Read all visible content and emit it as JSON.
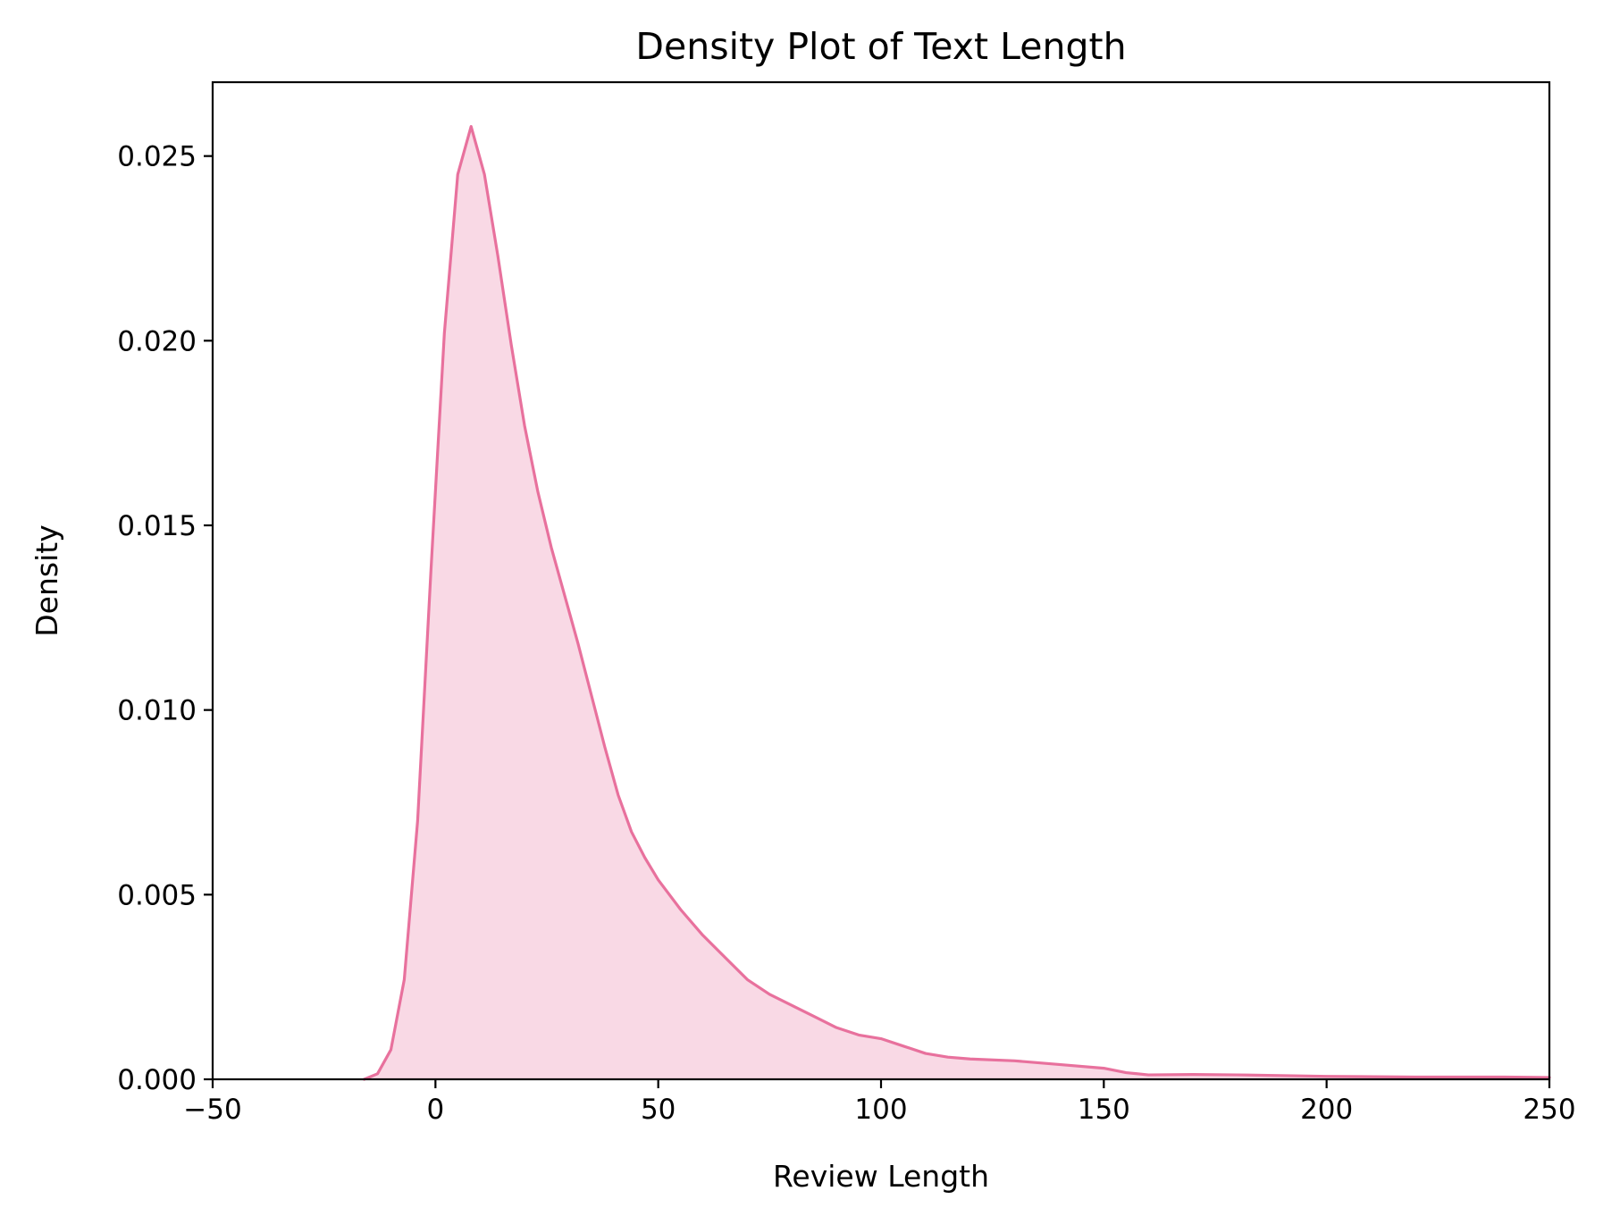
{
  "chart_data": {
    "type": "area",
    "title": "Density Plot of Text Length",
    "xlabel": "Review Length",
    "ylabel": "Density",
    "xlim": [
      -50,
      250
    ],
    "ylim": [
      0,
      0.027
    ],
    "xticks": [
      -50,
      0,
      50,
      100,
      150,
      200,
      250
    ],
    "xtick_labels": [
      "−50",
      "0",
      "50",
      "100",
      "150",
      "200",
      "250"
    ],
    "yticks": [
      0,
      0.005,
      0.01,
      0.015,
      0.02,
      0.025
    ],
    "ytick_labels": [
      "0.000",
      "0.005",
      "0.010",
      "0.015",
      "0.020",
      "0.025"
    ],
    "grid": false,
    "line_color": "#e8719d",
    "fill_color": "#f9d9e5",
    "series": [
      {
        "x": [
          -16,
          -13,
          -10,
          -7,
          -4,
          -1,
          2,
          5,
          8,
          11,
          14,
          17,
          20,
          23,
          26,
          29,
          32,
          35,
          38,
          41,
          44,
          47,
          50,
          55,
          60,
          65,
          70,
          75,
          80,
          85,
          90,
          95,
          100,
          105,
          110,
          115,
          120,
          130,
          140,
          150,
          155,
          160,
          170,
          180,
          200,
          220,
          240,
          250
        ],
        "y": [
          0,
          0.00015,
          0.0008,
          0.0027,
          0.007,
          0.0138,
          0.0202,
          0.0245,
          0.0258,
          0.0245,
          0.0223,
          0.0199,
          0.0177,
          0.0159,
          0.0144,
          0.0131,
          0.0118,
          0.0104,
          0.009,
          0.0077,
          0.0067,
          0.006,
          0.0054,
          0.0046,
          0.0039,
          0.0033,
          0.0027,
          0.0023,
          0.002,
          0.0017,
          0.0014,
          0.0012,
          0.0011,
          0.0009,
          0.0007,
          0.0006,
          0.00055,
          0.0005,
          0.0004,
          0.0003,
          0.00018,
          0.00012,
          0.00013,
          0.00012,
          8e-05,
          6e-05,
          6e-05,
          5e-05
        ]
      }
    ]
  }
}
